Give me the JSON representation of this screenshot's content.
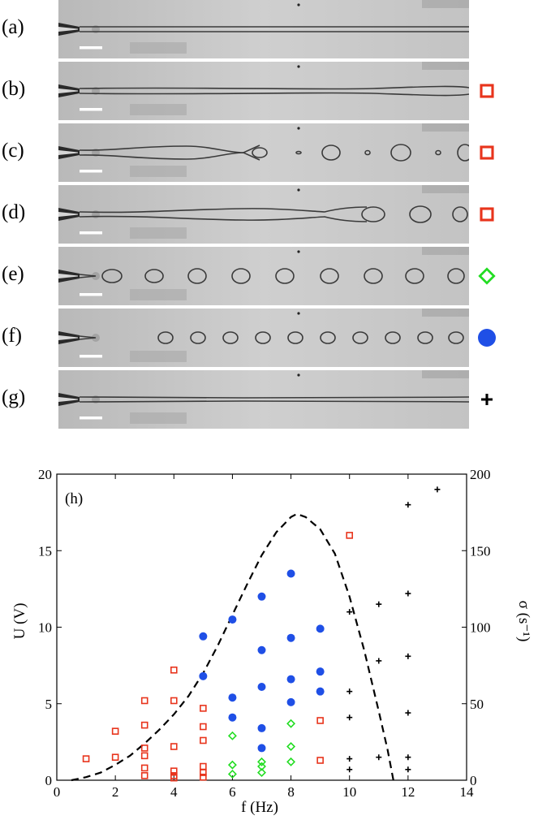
{
  "panels": [
    {
      "label": "(a)",
      "marker": ""
    },
    {
      "label": "(b)",
      "marker": "open-square"
    },
    {
      "label": "(c)",
      "marker": "open-square"
    },
    {
      "label": "(d)",
      "marker": "open-square"
    },
    {
      "label": "(e)",
      "marker": "open-diamond"
    },
    {
      "label": "(f)",
      "marker": "filled-circle"
    },
    {
      "label": "(g)",
      "marker": "plus"
    }
  ],
  "colors": {
    "open-square": "#e8341c",
    "open-diamond": "#22dd22",
    "filled-circle": "#1f4fe6",
    "plus": "#000000",
    "curve": "#000000"
  },
  "chart_data": {
    "type": "scatter",
    "panel_label": "(h)",
    "xlabel": "f (Hz)",
    "ylabel": "U (V)",
    "y2label": "σ (s⁻¹)",
    "xlim": [
      0,
      14
    ],
    "ylim": [
      0,
      20
    ],
    "y2lim": [
      0,
      200
    ],
    "xticks": [
      0,
      2,
      4,
      6,
      8,
      10,
      12,
      14
    ],
    "yticks": [
      0,
      5,
      10,
      15,
      20
    ],
    "y2ticks": [
      0,
      50,
      100,
      150,
      200
    ],
    "grid": false,
    "series": [
      {
        "marker": "open-square",
        "points": [
          [
            1,
            1.4
          ],
          [
            2,
            3.2
          ],
          [
            2,
            1.5
          ],
          [
            3,
            5.2
          ],
          [
            3,
            3.6
          ],
          [
            3,
            2.1
          ],
          [
            3,
            1.6
          ],
          [
            3,
            0.8
          ],
          [
            3,
            0.3
          ],
          [
            4,
            7.2
          ],
          [
            4,
            5.2
          ],
          [
            4,
            2.2
          ],
          [
            4,
            0.6
          ],
          [
            4,
            0.3
          ],
          [
            4,
            0.15
          ],
          [
            5,
            4.7
          ],
          [
            5,
            3.5
          ],
          [
            5,
            2.6
          ],
          [
            5,
            0.9
          ],
          [
            5,
            0.5
          ],
          [
            5,
            0.2
          ],
          [
            9,
            3.9
          ],
          [
            9,
            1.3
          ],
          [
            10,
            16
          ]
        ]
      },
      {
        "marker": "open-diamond",
        "points": [
          [
            6,
            2.9
          ],
          [
            6,
            1.0
          ],
          [
            6,
            0.4
          ],
          [
            7,
            1.2
          ],
          [
            7,
            0.9
          ],
          [
            7,
            0.5
          ],
          [
            8,
            3.7
          ],
          [
            8,
            2.2
          ],
          [
            8,
            1.2
          ]
        ]
      },
      {
        "marker": "filled-circle",
        "points": [
          [
            5,
            9.4
          ],
          [
            5,
            6.8
          ],
          [
            6,
            10.5
          ],
          [
            6,
            5.4
          ],
          [
            6,
            4.1
          ],
          [
            7,
            12.0
          ],
          [
            7,
            8.5
          ],
          [
            7,
            6.1
          ],
          [
            7,
            3.4
          ],
          [
            7,
            2.1
          ],
          [
            8,
            13.5
          ],
          [
            8,
            9.3
          ],
          [
            8,
            6.6
          ],
          [
            8,
            5.1
          ],
          [
            9,
            9.9
          ],
          [
            9,
            7.1
          ],
          [
            9,
            5.8
          ]
        ]
      },
      {
        "marker": "plus",
        "points": [
          [
            10,
            11
          ],
          [
            10,
            5.8
          ],
          [
            10,
            4.1
          ],
          [
            10,
            1.4
          ],
          [
            10,
            0.7
          ],
          [
            11,
            11.5
          ],
          [
            11,
            7.8
          ],
          [
            11,
            1.5
          ],
          [
            12,
            18
          ],
          [
            12,
            12.2
          ],
          [
            12,
            8.1
          ],
          [
            12,
            4.4
          ],
          [
            12,
            1.5
          ],
          [
            12,
            0.7
          ],
          [
            13,
            19
          ]
        ]
      }
    ],
    "curve": {
      "style": "dashed",
      "axis": "y2",
      "points": [
        [
          0.5,
          0
        ],
        [
          1,
          2
        ],
        [
          1.5,
          5
        ],
        [
          2,
          10
        ],
        [
          2.5,
          16
        ],
        [
          3,
          24
        ],
        [
          3.5,
          33
        ],
        [
          4,
          43
        ],
        [
          4.5,
          55
        ],
        [
          5,
          70
        ],
        [
          5.5,
          88
        ],
        [
          6,
          108
        ],
        [
          6.5,
          128
        ],
        [
          7,
          147
        ],
        [
          7.5,
          162
        ],
        [
          8,
          172
        ],
        [
          8.2,
          174
        ],
        [
          8.5,
          172
        ],
        [
          9,
          164
        ],
        [
          9.5,
          148
        ],
        [
          10,
          120
        ],
        [
          10.5,
          85
        ],
        [
          11,
          45
        ],
        [
          11.3,
          20
        ],
        [
          11.5,
          0
        ]
      ]
    }
  }
}
